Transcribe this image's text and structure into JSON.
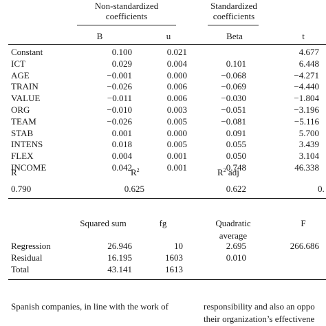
{
  "coef_table": {
    "group_headers": {
      "nonstd_line1": "Non-standardized",
      "nonstd_line2": "coefficients",
      "std_line1": "Standardized",
      "std_line2": "coefficients"
    },
    "col_headers": {
      "b": "B",
      "u": "u",
      "beta": "Beta",
      "t": "t"
    },
    "rows": [
      {
        "name": "Constant",
        "b": "0.100",
        "u": "0.021",
        "beta": "",
        "t": "4.677"
      },
      {
        "name": "ICT",
        "b": "0.029",
        "u": "0.004",
        "beta": "0.101",
        "t": "6.448"
      },
      {
        "name": "AGE",
        "b": "−0.001",
        "u": "0.000",
        "beta": "−0.068",
        "t": "−4.271"
      },
      {
        "name": "TRAIN",
        "b": "−0.026",
        "u": "0.006",
        "beta": "−0.069",
        "t": "−4.440"
      },
      {
        "name": "VALUE",
        "b": "−0.011",
        "u": "0.006",
        "beta": "−0.030",
        "t": "−1.804"
      },
      {
        "name": "ORG",
        "b": "−0.010",
        "u": "0.003",
        "beta": "−0.051",
        "t": "−3.196"
      },
      {
        "name": "TEAM",
        "b": "−0.026",
        "u": "0.005",
        "beta": "−0.081",
        "t": "−5.116"
      },
      {
        "name": "STAB",
        "b": "0.001",
        "u": "0.000",
        "beta": "0.091",
        "t": "5.700"
      },
      {
        "name": "INTENS",
        "b": "0.018",
        "u": "0.005",
        "beta": "0.055",
        "t": "3.439"
      },
      {
        "name": "FLEX",
        "b": "0.004",
        "u": "0.001",
        "beta": "0.050",
        "t": "3.104"
      },
      {
        "name": "INCOME",
        "b": "0.042",
        "u": "0.001",
        "beta": "0.748",
        "t": "46.338"
      }
    ]
  },
  "fit_stats": {
    "r_label": "R",
    "r2_label": "R",
    "r2_sup": "2",
    "r2adj_label": "R",
    "r2adj_sup": "2",
    "r2adj_suffix": " adj",
    "r_value": "0.790",
    "r2_value": "0.625",
    "r2adj_value": "0.622",
    "cut_value": "0."
  },
  "anova_table": {
    "headers": {
      "ss": "Squared sum",
      "fg": "fg",
      "ms_line1": "Quadratic",
      "ms_line2": "average",
      "f": "F"
    },
    "rows": [
      {
        "name": "Regression",
        "ss": "26.946",
        "fg": "10",
        "ms": "2.695",
        "f": "266.686"
      },
      {
        "name": "Residual",
        "ss": "16.195",
        "fg": "1603",
        "ms": "0.010",
        "f": ""
      },
      {
        "name": "Total",
        "ss": "43.141",
        "fg": "1613",
        "ms": "",
        "f": ""
      }
    ]
  },
  "body_text": {
    "left_line1": "Spanish companies, in line with the work of",
    "right_line1": "responsibility and also an oppo",
    "right_line2": "their organization’s effectivene"
  }
}
